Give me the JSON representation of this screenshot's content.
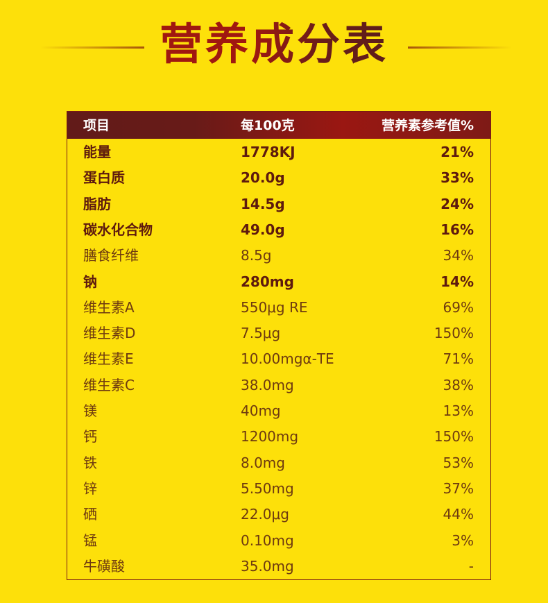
{
  "title": "营养成分表",
  "table": {
    "headers": [
      "项目",
      "每100克",
      "营养素参考值%"
    ],
    "rows": [
      {
        "name": "能量",
        "amount": "1778KJ",
        "nrv": "21%",
        "bold": true
      },
      {
        "name": "蛋白质",
        "amount": "20.0g",
        "nrv": "33%",
        "bold": true
      },
      {
        "name": "脂肪",
        "amount": "14.5g",
        "nrv": "24%",
        "bold": true
      },
      {
        "name": "碳水化合物",
        "amount": "49.0g",
        "nrv": "16%",
        "bold": true
      },
      {
        "name": "膳食纤维",
        "amount": "8.5g",
        "nrv": "34%",
        "bold": false
      },
      {
        "name": "钠",
        "amount": "280mg",
        "nrv": "14%",
        "bold": true
      },
      {
        "name": "维生素A",
        "amount": "550μg RE",
        "nrv": "69%",
        "bold": false
      },
      {
        "name": "维生素D",
        "amount": "7.5μg",
        "nrv": "150%",
        "bold": false
      },
      {
        "name": "维生素E",
        "amount": "10.00mgα-TE",
        "nrv": "71%",
        "bold": false
      },
      {
        "name": "维生素C",
        "amount": "38.0mg",
        "nrv": "38%",
        "bold": false
      },
      {
        "name": "镁",
        "amount": "40mg",
        "nrv": "13%",
        "bold": false
      },
      {
        "name": "钙",
        "amount": "1200mg",
        "nrv": "150%",
        "bold": false
      },
      {
        "name": "铁",
        "amount": "8.0mg",
        "nrv": "53%",
        "bold": false
      },
      {
        "name": "锌",
        "amount": "5.50mg",
        "nrv": "37%",
        "bold": false
      },
      {
        "name": "硒",
        "amount": "22.0μg",
        "nrv": "44%",
        "bold": false
      },
      {
        "name": "锰",
        "amount": "0.10mg",
        "nrv": "3%",
        "bold": false
      },
      {
        "name": "牛磺酸",
        "amount": "35.0mg",
        "nrv": "-",
        "bold": false
      }
    ]
  },
  "colors": {
    "background": "#fde00a",
    "header": "#8a1914",
    "text": "#6b2410"
  }
}
